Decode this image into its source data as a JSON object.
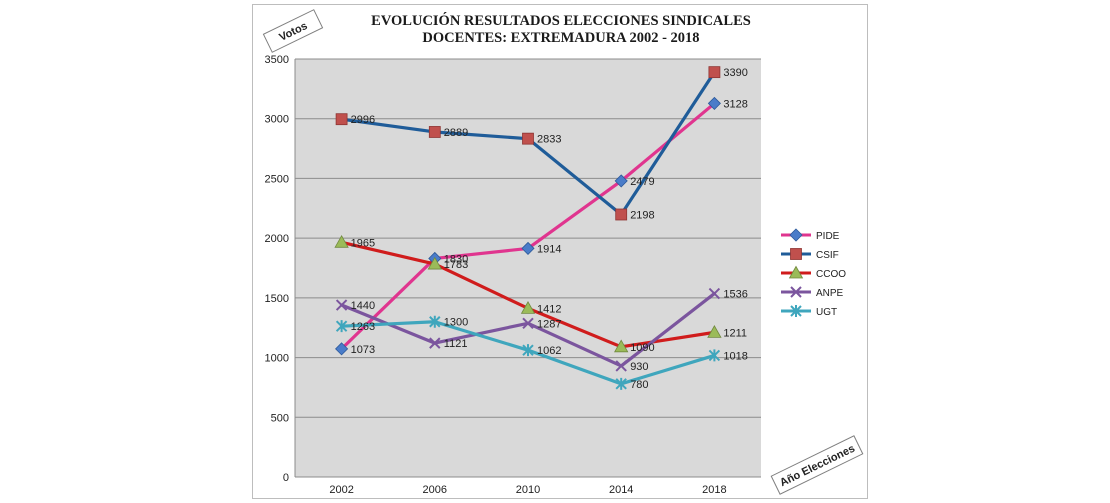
{
  "chart_data": {
    "type": "line",
    "title": [
      "EVOLUCIÓN RESULTADOS ELECCIONES SINDICALES",
      "DOCENTES: EXTREMADURA 2002 - 2018"
    ],
    "ylabel": "Votos",
    "xlabel": "Año Elecciones",
    "categories": [
      "2002",
      "2006",
      "2010",
      "2014",
      "2018"
    ],
    "ylim": [
      0,
      3500
    ],
    "yticks": [
      "0",
      "500",
      "1000",
      "1500",
      "2000",
      "2500",
      "3000",
      "3500"
    ],
    "grid": "horizontal",
    "legend_position": "right",
    "series": [
      {
        "name": "PIDE",
        "color": "#e0358f",
        "marker": "diamond",
        "marker_color": "#4a7cc9",
        "values": [
          1073,
          1830,
          1914,
          2479,
          3128
        ]
      },
      {
        "name": "CSIF",
        "color": "#1f5c99",
        "marker": "square",
        "marker_color": "#c0504d",
        "values": [
          2996,
          2889,
          2833,
          2198,
          3390
        ]
      },
      {
        "name": "CCOO",
        "color": "#d01c1c",
        "marker": "triangle",
        "marker_color": "#9bbb59",
        "values": [
          1965,
          1783,
          1412,
          1090,
          1211
        ]
      },
      {
        "name": "ANPE",
        "color": "#7b559e",
        "marker": "x",
        "marker_color": "#7b559e",
        "values": [
          1440,
          1121,
          1287,
          930,
          1536
        ]
      },
      {
        "name": "UGT",
        "color": "#3fa6bd",
        "marker": "star",
        "marker_color": "#3fa6bd",
        "values": [
          1263,
          1300,
          1062,
          780,
          1018
        ]
      }
    ],
    "data_labels": [
      {
        "series": "PIDE",
        "index": 0,
        "text": "1073"
      },
      {
        "series": "PIDE",
        "index": 1,
        "text": "1830"
      },
      {
        "series": "PIDE",
        "index": 2,
        "text": "1914"
      },
      {
        "series": "PIDE",
        "index": 3,
        "text": "2479"
      },
      {
        "series": "PIDE",
        "index": 4,
        "text": "3128"
      },
      {
        "series": "CSIF",
        "index": 0,
        "text": "2996"
      },
      {
        "series": "CSIF",
        "index": 1,
        "text": "2889"
      },
      {
        "series": "CSIF",
        "index": 2,
        "text": "2833"
      },
      {
        "series": "CSIF",
        "index": 3,
        "text": "2198"
      },
      {
        "series": "CSIF",
        "index": 4,
        "text": "3390"
      },
      {
        "series": "CCOO",
        "index": 0,
        "text": "1965"
      },
      {
        "series": "CCOO",
        "index": 1,
        "text": "1783"
      },
      {
        "series": "CCOO",
        "index": 2,
        "text": "1412"
      },
      {
        "series": "CCOO",
        "index": 3,
        "text": "1090"
      },
      {
        "series": "CCOO",
        "index": 4,
        "text": "1211"
      },
      {
        "series": "ANPE",
        "index": 0,
        "text": "1440"
      },
      {
        "series": "ANPE",
        "index": 1,
        "text": "1121"
      },
      {
        "series": "ANPE",
        "index": 2,
        "text": "1287"
      },
      {
        "series": "ANPE",
        "index": 3,
        "text": "930"
      },
      {
        "series": "ANPE",
        "index": 4,
        "text": "1536"
      },
      {
        "series": "UGT",
        "index": 0,
        "text": "1263"
      },
      {
        "series": "UGT",
        "index": 1,
        "text": "1300"
      },
      {
        "series": "UGT",
        "index": 2,
        "text": "1062"
      },
      {
        "series": "UGT",
        "index": 3,
        "text": "780"
      },
      {
        "series": "UGT",
        "index": 4,
        "text": "1018"
      }
    ]
  }
}
